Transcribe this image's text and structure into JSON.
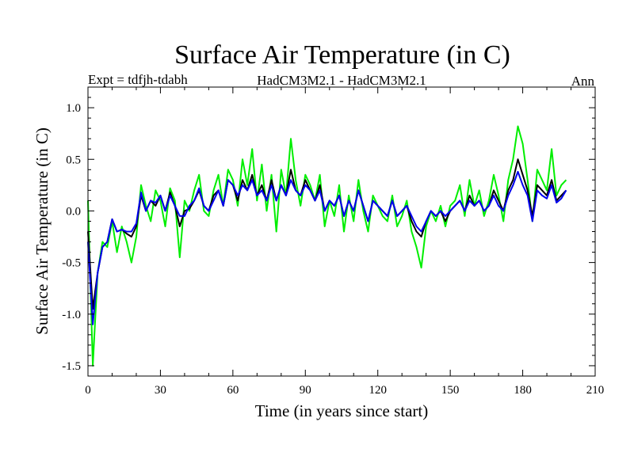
{
  "chart_data": {
    "type": "line",
    "title": "Surface Air Temperature (in C)",
    "subtitle_left": "Expt = tdfjh-tdabh",
    "subtitle_center": "HadCM3M2.1 - HadCM3M2.1",
    "subtitle_right": "Ann",
    "xlabel": "Time (in years since start)",
    "ylabel": "Surface Air Temperature (in C)",
    "xlim": [
      0,
      210
    ],
    "ylim": [
      -1.6,
      1.2
    ],
    "xticks": [
      0,
      30,
      60,
      90,
      120,
      150,
      180,
      210
    ],
    "yticks": [
      -1.5,
      -1.0,
      -0.5,
      0.0,
      0.5,
      1.0
    ],
    "ytick_labels": [
      "-1.5",
      "-1.0",
      "-0.5",
      "0.0",
      "0.5",
      "1.0"
    ],
    "x": [
      0,
      2,
      4,
      6,
      8,
      10,
      12,
      14,
      16,
      18,
      20,
      22,
      24,
      26,
      28,
      30,
      32,
      34,
      36,
      38,
      40,
      42,
      44,
      46,
      48,
      50,
      52,
      54,
      56,
      58,
      60,
      62,
      64,
      66,
      68,
      70,
      72,
      74,
      76,
      78,
      80,
      82,
      84,
      86,
      88,
      90,
      92,
      94,
      96,
      98,
      100,
      102,
      104,
      106,
      108,
      110,
      112,
      114,
      116,
      118,
      120,
      122,
      124,
      126,
      128,
      130,
      132,
      134,
      136,
      138,
      140,
      142,
      144,
      146,
      148,
      150,
      152,
      154,
      156,
      158,
      160,
      162,
      164,
      166,
      168,
      170,
      172,
      174,
      176,
      178,
      180,
      182,
      184,
      186,
      188,
      190,
      192,
      194,
      196,
      198
    ],
    "series": [
      {
        "name": "black",
        "color": "#000000",
        "values": [
          -0.2,
          -0.95,
          -0.6,
          -0.35,
          -0.3,
          -0.08,
          -0.2,
          -0.18,
          -0.22,
          -0.25,
          -0.15,
          0.15,
          0.0,
          0.1,
          0.05,
          0.15,
          0.0,
          0.18,
          0.05,
          -0.15,
          0.0,
          0.02,
          0.1,
          0.2,
          0.05,
          0.0,
          0.15,
          0.2,
          0.05,
          0.3,
          0.25,
          0.1,
          0.3,
          0.2,
          0.35,
          0.15,
          0.25,
          0.1,
          0.3,
          0.1,
          0.25,
          0.15,
          0.4,
          0.2,
          0.15,
          0.3,
          0.2,
          0.1,
          0.25,
          0.0,
          0.1,
          0.05,
          0.15,
          -0.05,
          0.1,
          0.0,
          0.2,
          0.05,
          -0.1,
          0.1,
          0.05,
          0.0,
          -0.05,
          0.1,
          -0.05,
          0.0,
          0.05,
          -0.1,
          -0.2,
          -0.25,
          -0.1,
          0.0,
          -0.05,
          0.0,
          -0.1,
          0.0,
          0.05,
          0.1,
          0.0,
          0.15,
          0.05,
          0.1,
          0.0,
          0.05,
          0.2,
          0.1,
          0.0,
          0.2,
          0.3,
          0.5,
          0.35,
          0.2,
          -0.05,
          0.25,
          0.2,
          0.15,
          0.3,
          0.1,
          0.15,
          0.2
        ]
      },
      {
        "name": "green",
        "color": "#00ee00",
        "values": [
          0.1,
          -1.5,
          -0.6,
          -0.3,
          -0.35,
          -0.1,
          -0.4,
          -0.15,
          -0.3,
          -0.5,
          -0.25,
          0.25,
          0.05,
          -0.1,
          0.2,
          0.1,
          -0.15,
          0.22,
          0.1,
          -0.45,
          0.1,
          0.0,
          0.2,
          0.35,
          0.0,
          -0.05,
          0.2,
          0.35,
          0.05,
          0.4,
          0.3,
          0.05,
          0.5,
          0.25,
          0.6,
          0.1,
          0.45,
          0.0,
          0.35,
          -0.2,
          0.4,
          0.15,
          0.7,
          0.3,
          0.05,
          0.35,
          0.25,
          0.1,
          0.35,
          -0.15,
          0.1,
          -0.05,
          0.25,
          -0.2,
          0.15,
          -0.1,
          0.3,
          0.0,
          -0.2,
          0.15,
          0.05,
          -0.05,
          -0.1,
          0.15,
          -0.15,
          -0.05,
          0.1,
          -0.2,
          -0.35,
          -0.55,
          -0.15,
          0.0,
          -0.1,
          0.05,
          -0.15,
          0.05,
          0.1,
          0.25,
          -0.05,
          0.3,
          0.05,
          0.2,
          -0.05,
          0.1,
          0.35,
          0.15,
          -0.1,
          0.3,
          0.5,
          0.82,
          0.65,
          0.3,
          -0.1,
          0.4,
          0.3,
          0.2,
          0.6,
          0.15,
          0.25,
          0.3
        ]
      },
      {
        "name": "blue",
        "color": "#0000ee",
        "values": [
          -0.3,
          -1.1,
          -0.6,
          -0.35,
          -0.3,
          -0.08,
          -0.2,
          -0.18,
          -0.2,
          -0.2,
          -0.12,
          0.18,
          0.0,
          0.1,
          0.08,
          0.15,
          0.0,
          0.15,
          0.05,
          -0.05,
          -0.05,
          0.05,
          0.1,
          0.22,
          0.05,
          0.0,
          0.1,
          0.2,
          0.05,
          0.3,
          0.25,
          0.15,
          0.25,
          0.2,
          0.3,
          0.15,
          0.2,
          0.1,
          0.25,
          0.1,
          0.25,
          0.15,
          0.3,
          0.2,
          0.15,
          0.25,
          0.2,
          0.1,
          0.2,
          0.0,
          0.1,
          0.05,
          0.15,
          -0.05,
          0.1,
          0.0,
          0.2,
          0.05,
          -0.1,
          0.1,
          0.05,
          0.0,
          -0.05,
          0.1,
          -0.05,
          0.0,
          0.05,
          -0.05,
          -0.15,
          -0.2,
          -0.1,
          0.0,
          -0.05,
          0.0,
          -0.05,
          0.0,
          0.05,
          0.1,
          0.0,
          0.1,
          0.05,
          0.1,
          0.0,
          0.05,
          0.15,
          0.05,
          0.0,
          0.15,
          0.25,
          0.38,
          0.25,
          0.15,
          -0.1,
          0.2,
          0.15,
          0.12,
          0.25,
          0.08,
          0.12,
          0.2
        ]
      }
    ]
  }
}
